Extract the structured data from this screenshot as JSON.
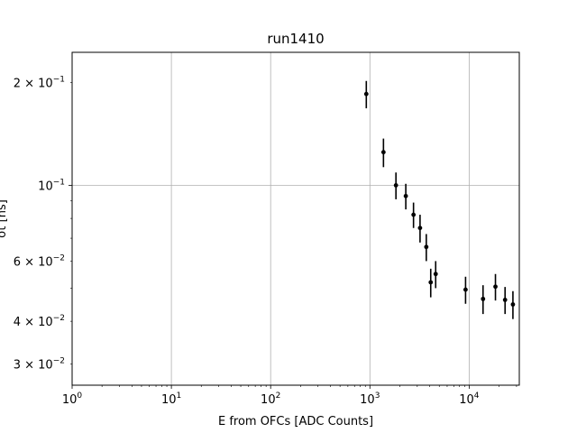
{
  "chart_data": {
    "type": "scatter",
    "title": "run1410",
    "xlabel": "E from OFCs [ADC Counts]",
    "ylabel": "σt [ns]",
    "xscale": "log",
    "yscale": "log",
    "xlim": [
      1,
      32000
    ],
    "ylim": [
      0.026,
      0.245
    ],
    "grid": "major",
    "x_ticks": [
      {
        "value": 1,
        "mantissa": "",
        "base": "10",
        "exp": "0"
      },
      {
        "value": 10,
        "mantissa": "",
        "base": "10",
        "exp": "1"
      },
      {
        "value": 100,
        "mantissa": "",
        "base": "10",
        "exp": "2"
      },
      {
        "value": 1000,
        "mantissa": "",
        "base": "10",
        "exp": "3"
      },
      {
        "value": 10000,
        "mantissa": "",
        "base": "10",
        "exp": "4"
      }
    ],
    "y_ticks": [
      {
        "value": 0.2,
        "mantissa": "2 × ",
        "base": "10",
        "exp": "−1",
        "grid": false
      },
      {
        "value": 0.1,
        "mantissa": "",
        "base": "10",
        "exp": "−1",
        "grid": true
      },
      {
        "value": 0.06,
        "mantissa": "6 × ",
        "base": "10",
        "exp": "−2",
        "grid": false
      },
      {
        "value": 0.04,
        "mantissa": "4 × ",
        "base": "10",
        "exp": "−2",
        "grid": false
      },
      {
        "value": 0.03,
        "mantissa": "3 × ",
        "base": "10",
        "exp": "−2",
        "grid": false
      }
    ],
    "series": [
      {
        "color": "#000000",
        "points": [
          {
            "x": 920,
            "y": 0.185,
            "yerr": 0.017
          },
          {
            "x": 1370,
            "y": 0.125,
            "yerr": 0.012
          },
          {
            "x": 1830,
            "y": 0.1,
            "yerr": 0.009
          },
          {
            "x": 2300,
            "y": 0.093,
            "yerr": 0.008
          },
          {
            "x": 2750,
            "y": 0.082,
            "yerr": 0.007
          },
          {
            "x": 3200,
            "y": 0.075,
            "yerr": 0.007
          },
          {
            "x": 3700,
            "y": 0.066,
            "yerr": 0.006
          },
          {
            "x": 4100,
            "y": 0.052,
            "yerr": 0.005
          },
          {
            "x": 4600,
            "y": 0.055,
            "yerr": 0.005
          },
          {
            "x": 9200,
            "y": 0.0495,
            "yerr": 0.0045
          },
          {
            "x": 13800,
            "y": 0.0465,
            "yerr": 0.0045
          },
          {
            "x": 18400,
            "y": 0.0505,
            "yerr": 0.0045
          },
          {
            "x": 23000,
            "y": 0.0462,
            "yerr": 0.0042
          },
          {
            "x": 27600,
            "y": 0.0448,
            "yerr": 0.0042
          }
        ]
      }
    ]
  }
}
